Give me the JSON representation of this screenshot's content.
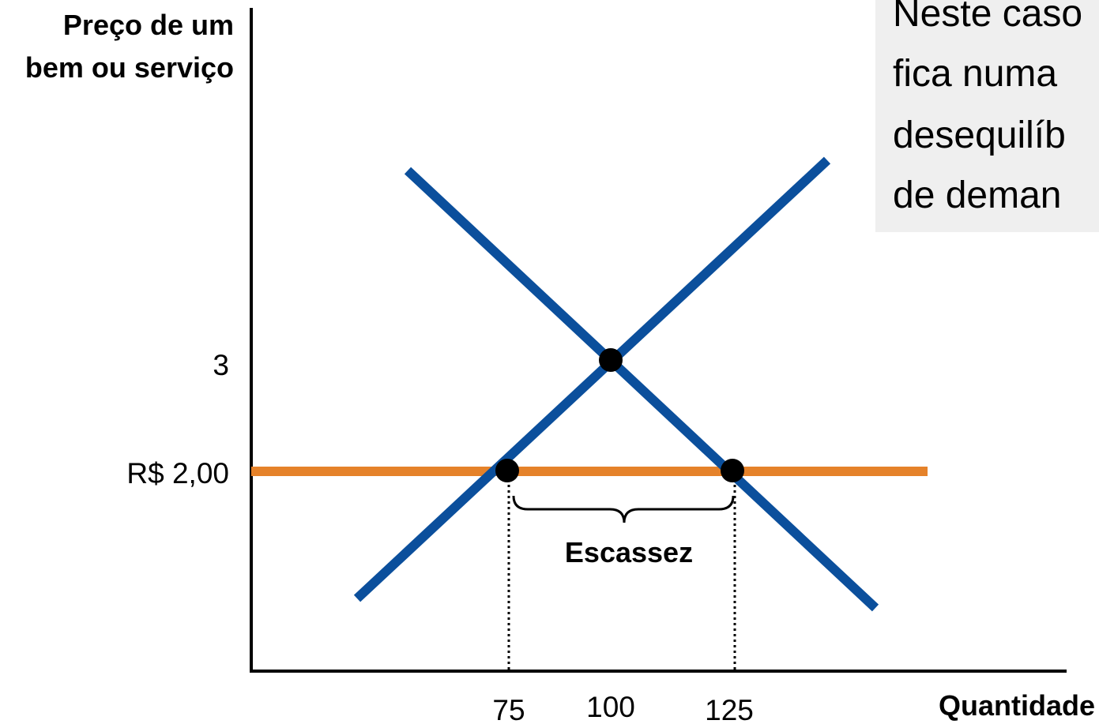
{
  "y_axis_title": [
    "Preço de um",
    "bem ou serviço"
  ],
  "x_axis_title": "Quantidade",
  "y_ticks": [
    "3",
    "R$ 2,00"
  ],
  "x_ticks": [
    "75",
    "100",
    "125"
  ],
  "gap_label": "Escassez",
  "note_lines": [
    "Neste caso",
    "fica numa",
    "desequilíb",
    "de deman"
  ],
  "colors": {
    "curves": "#0b4f9c",
    "price_line": "#e5822a",
    "points": "#000000",
    "note_bg": "#efefef"
  }
}
